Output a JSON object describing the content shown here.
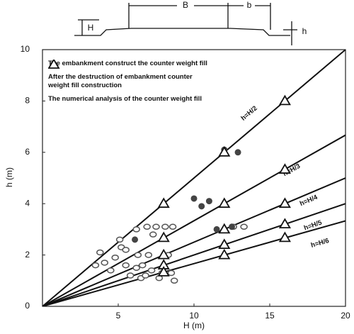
{
  "diagram": {
    "labels": [
      "B",
      "b",
      "H",
      "h"
    ]
  },
  "chart_data": {
    "type": "scatter",
    "xlabel": "H (m)",
    "ylabel": "h (m)",
    "xlim": [
      0,
      20
    ],
    "ylim": [
      0,
      10
    ],
    "xticks": [
      5,
      10,
      15,
      20
    ],
    "yticks": [
      0,
      2,
      4,
      6,
      8,
      10
    ],
    "series": [
      {
        "name": "The embankment construct the counter weight fill",
        "marker": "open-circle",
        "color": "#555",
        "x": [
          3.5,
          3.8,
          4.1,
          4.5,
          4.8,
          5.2,
          5.5,
          5.8,
          6.2,
          6.3,
          6.5,
          6.6,
          6.8,
          7.0,
          7.2,
          7.3,
          7.5,
          7.7,
          7.9,
          8.1,
          8.3,
          8.5,
          8.6,
          8.7,
          6.9,
          6.2,
          5.1,
          13.3,
          12.6,
          5.5
        ],
        "values": [
          1.6,
          2.1,
          1.7,
          1.4,
          1.9,
          2.3,
          1.6,
          1.2,
          1.5,
          2.0,
          1.1,
          1.6,
          1.2,
          2.0,
          1.4,
          2.8,
          3.1,
          1.1,
          1.3,
          3.1,
          2.0,
          1.3,
          3.1,
          1.0,
          3.1,
          3.0,
          2.6,
          3.1,
          3.1,
          2.2
        ]
      },
      {
        "name": "After the destruction of  embankment counter weight fill construction",
        "marker": "filled-circle",
        "color": "#444",
        "x": [
          6.1,
          10.0,
          10.5,
          11.0,
          11.5,
          12.0,
          12.9,
          12.5
        ],
        "values": [
          2.6,
          4.2,
          3.9,
          4.1,
          3.0,
          6.1,
          6.0,
          3.1
        ]
      },
      {
        "name": "The numerical analysis of the counter weight fill",
        "marker": "triangle",
        "color": "#111",
        "x": [
          8,
          8,
          8,
          8,
          8,
          12,
          12,
          12,
          12,
          12,
          16,
          16,
          16,
          16,
          16
        ],
        "values": [
          4,
          2.67,
          2,
          1.6,
          1.33,
          6,
          4,
          3,
          2.4,
          2,
          8,
          5.33,
          4,
          3.2,
          2.67
        ]
      }
    ],
    "lines": [
      {
        "label": "h=H/2",
        "x": [
          0,
          20
        ],
        "values": [
          0,
          10
        ]
      },
      {
        "label": "h=H/3",
        "x": [
          0,
          20
        ],
        "values": [
          0,
          6.67
        ]
      },
      {
        "label": "h=H/4",
        "x": [
          0,
          20
        ],
        "values": [
          0,
          5
        ]
      },
      {
        "label": "h=H/5",
        "x": [
          0,
          20
        ],
        "values": [
          0,
          4
        ]
      },
      {
        "label": "h=H/6",
        "x": [
          0,
          20
        ],
        "values": [
          0,
          3.33
        ]
      }
    ]
  }
}
